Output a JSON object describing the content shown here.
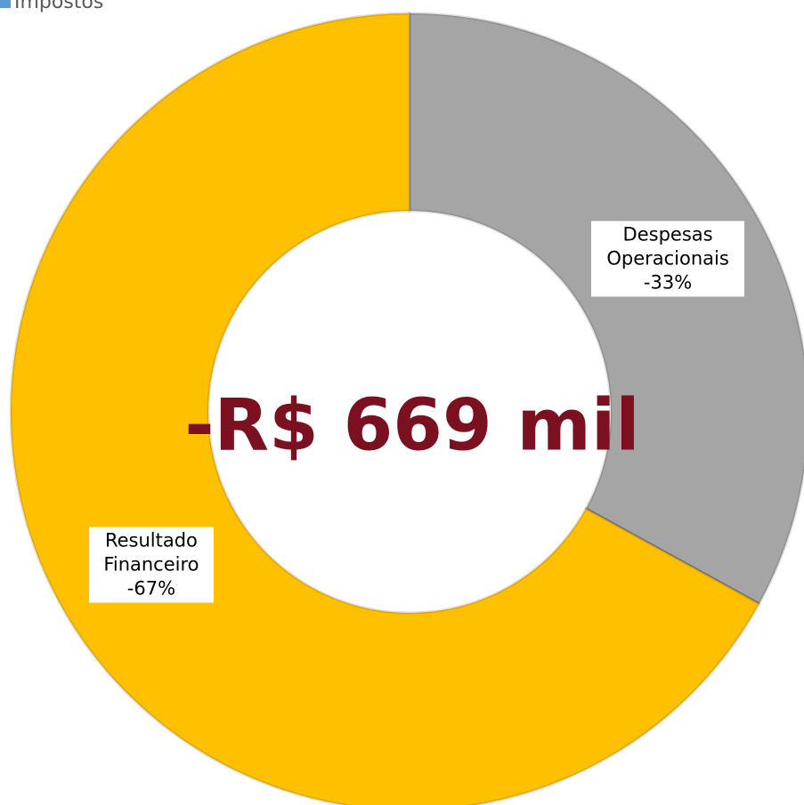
{
  "chart_data": {
    "type": "donut",
    "categories": [
      "Despesas Operacionais",
      "Impostos",
      "Resultado Financeiro"
    ],
    "values": [
      -33,
      0,
      -67
    ],
    "value_labels": [
      "-33%",
      null,
      "-67%"
    ],
    "colors": [
      "#a5a5a5",
      "#5b9bd5",
      "#ffc000"
    ],
    "legend": [
      "Impostos"
    ],
    "center_label": "-R$ 669 mil"
  }
}
